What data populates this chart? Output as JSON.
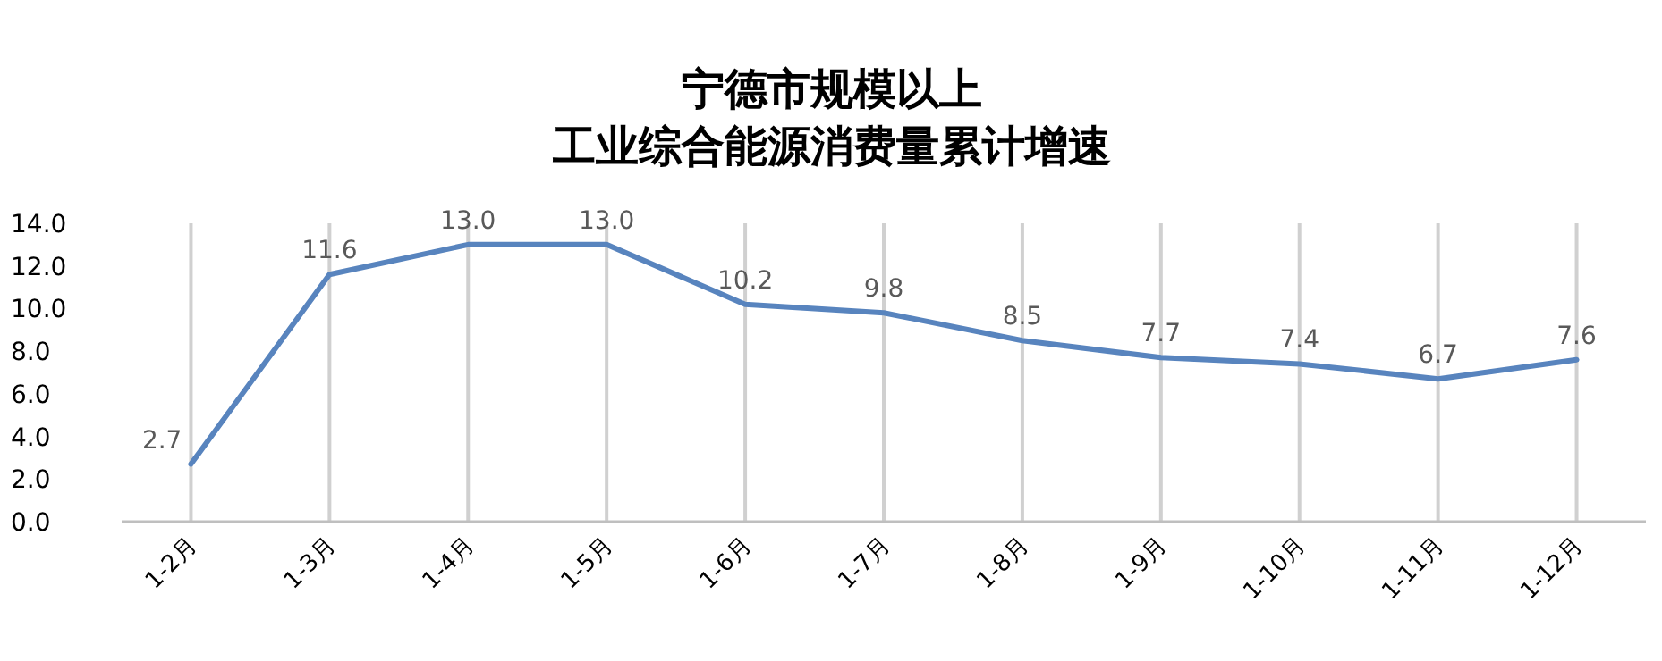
{
  "chart_data": {
    "type": "line",
    "title": "宁德市规模以上",
    "subtitle": "工业综合能源消费量累计增速",
    "categories": [
      "1-2月",
      "1-3月",
      "1-4月",
      "1-5月",
      "1-6月",
      "1-7月",
      "1-8月",
      "1-9月",
      "1-10月",
      "1-11月",
      "1-12月"
    ],
    "values": [
      2.7,
      11.6,
      13.0,
      13.0,
      10.2,
      9.8,
      8.5,
      7.7,
      7.4,
      6.7,
      7.6
    ],
    "color": "#5884be",
    "ylim": [
      0,
      14
    ],
    "yticks": [
      {
        "value": 0,
        "label": "0.0"
      },
      {
        "value": 2,
        "label": "2.0"
      },
      {
        "value": 4,
        "label": "4.0"
      },
      {
        "value": 6,
        "label": "6.0"
      },
      {
        "value": 8,
        "label": "8.0"
      },
      {
        "value": 10,
        "label": "10.0"
      },
      {
        "value": 12,
        "label": "12.0"
      },
      {
        "value": 14,
        "label": "14.0"
      }
    ],
    "value_labels": [
      "2.7",
      "11.6",
      "13.0",
      "13.0",
      "10.2",
      "9.8",
      "8.5",
      "7.7",
      "7.4",
      "6.7",
      "7.6"
    ],
    "grid": "x",
    "marker": "none",
    "line_style": "solid"
  }
}
